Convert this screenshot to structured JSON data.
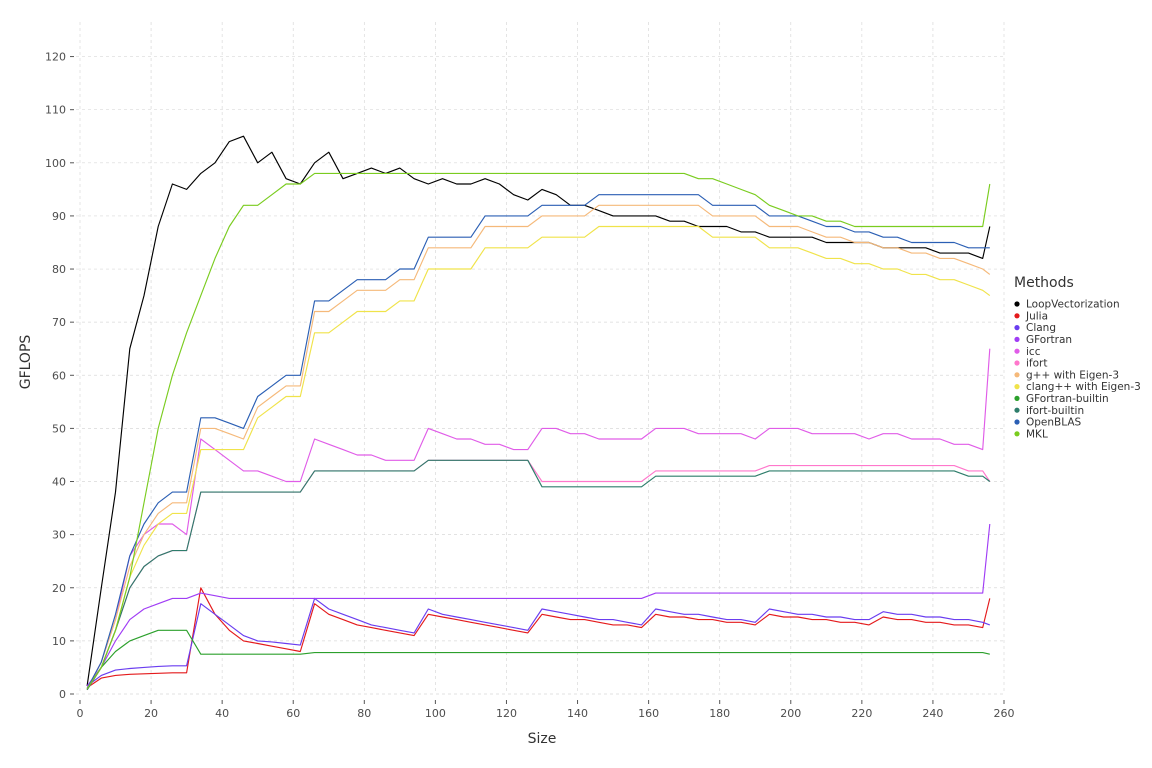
{
  "chart_data": {
    "type": "line",
    "title": "",
    "xlabel": "Size",
    "ylabel": "GFLOPS",
    "xlim": [
      0,
      260
    ],
    "ylim": [
      0,
      125
    ],
    "xticks": [
      0,
      20,
      40,
      60,
      80,
      100,
      120,
      140,
      160,
      180,
      200,
      220,
      240,
      260
    ],
    "yticks": [
      0,
      10,
      20,
      30,
      40,
      50,
      60,
      70,
      80,
      90,
      100,
      110,
      120
    ],
    "grid": true,
    "legend_title": "Methods",
    "legend_position": "right",
    "x": [
      2,
      6,
      10,
      14,
      18,
      22,
      26,
      30,
      34,
      38,
      42,
      46,
      50,
      54,
      58,
      62,
      66,
      70,
      74,
      78,
      82,
      86,
      90,
      94,
      98,
      102,
      106,
      110,
      114,
      118,
      122,
      126,
      130,
      134,
      138,
      142,
      146,
      150,
      154,
      158,
      162,
      166,
      170,
      174,
      178,
      182,
      186,
      190,
      194,
      198,
      202,
      206,
      210,
      214,
      218,
      222,
      226,
      230,
      234,
      238,
      242,
      246,
      250,
      254,
      256
    ],
    "series": [
      {
        "name": "LoopVectorization",
        "color": "#000000",
        "values": [
          1.5,
          20,
          38,
          65,
          75,
          88,
          96,
          95,
          98,
          100,
          104,
          105,
          100,
          102,
          97,
          96,
          100,
          102,
          97,
          98,
          99,
          98,
          99,
          97,
          96,
          97,
          96,
          96,
          97,
          96,
          94,
          93,
          95,
          94,
          92,
          92,
          91,
          90,
          90,
          90,
          90,
          89,
          89,
          88,
          88,
          88,
          87,
          87,
          86,
          86,
          86,
          86,
          85,
          85,
          85,
          85,
          84,
          84,
          84,
          84,
          83,
          83,
          83,
          82,
          88
        ]
      },
      {
        "name": "Julia",
        "color": "#e41a1c",
        "values": [
          1.2,
          3.0,
          3.5,
          3.7,
          3.8,
          3.9,
          4.0,
          4.0,
          20,
          15,
          12,
          10,
          9.5,
          9.0,
          8.5,
          8.0,
          17,
          15,
          14,
          13,
          12.5,
          12,
          11.5,
          11,
          15,
          14.5,
          14,
          13.5,
          13,
          12.5,
          12,
          11.5,
          15,
          14.5,
          14,
          14,
          13.5,
          13,
          13,
          12.5,
          15,
          14.5,
          14.5,
          14,
          14,
          13.5,
          13.5,
          13,
          15,
          14.5,
          14.5,
          14,
          14,
          13.5,
          13.5,
          13,
          14.5,
          14,
          14,
          13.5,
          13.5,
          13,
          13,
          12.5,
          18
        ]
      },
      {
        "name": "Clang",
        "color": "#6a3df0",
        "values": [
          1.5,
          3.5,
          4.5,
          4.8,
          5.0,
          5.2,
          5.3,
          5.3,
          17,
          15,
          13,
          11,
          10,
          9.8,
          9.5,
          9.2,
          18,
          16,
          15,
          14,
          13,
          12.5,
          12,
          11.5,
          16,
          15,
          14.5,
          14,
          13.5,
          13,
          12.5,
          12,
          16,
          15.5,
          15,
          14.5,
          14,
          14,
          13.5,
          13,
          16,
          15.5,
          15,
          15,
          14.5,
          14,
          14,
          13.5,
          16,
          15.5,
          15,
          15,
          14.5,
          14.5,
          14,
          14,
          15.5,
          15,
          15,
          14.5,
          14.5,
          14,
          14,
          13.5,
          13
        ]
      },
      {
        "name": "GFortran",
        "color": "#a03df5",
        "values": [
          1.5,
          5,
          10,
          14,
          16,
          17,
          18,
          18,
          19,
          18.5,
          18,
          18,
          18,
          18,
          18,
          18,
          18,
          18,
          18,
          18,
          18,
          18,
          18,
          18,
          18,
          18,
          18,
          18,
          18,
          18,
          18,
          18,
          18,
          18,
          18,
          18,
          18,
          18,
          18,
          18,
          19,
          19,
          19,
          19,
          19,
          19,
          19,
          19,
          19,
          19,
          19,
          19,
          19,
          19,
          19,
          19,
          19,
          19,
          19,
          19,
          19,
          19,
          19,
          19,
          32
        ]
      },
      {
        "name": "icc",
        "color": "#e05ce8",
        "values": [
          1.0,
          6,
          14,
          26,
          30,
          32,
          32,
          30,
          48,
          46,
          44,
          42,
          42,
          41,
          40,
          40,
          48,
          47,
          46,
          45,
          45,
          44,
          44,
          44,
          50,
          49,
          48,
          48,
          47,
          47,
          46,
          46,
          50,
          50,
          49,
          49,
          48,
          48,
          48,
          48,
          50,
          50,
          50,
          49,
          49,
          49,
          49,
          48,
          50,
          50,
          50,
          49,
          49,
          49,
          49,
          48,
          49,
          49,
          48,
          48,
          48,
          47,
          47,
          46,
          65
        ]
      },
      {
        "name": "ifort",
        "color": "#ff77cc",
        "values": [
          0.8,
          5,
          12,
          20,
          24,
          26,
          27,
          27,
          38,
          38,
          38,
          38,
          38,
          38,
          38,
          38,
          42,
          42,
          42,
          42,
          42,
          42,
          42,
          42,
          44,
          44,
          44,
          44,
          44,
          44,
          44,
          44,
          40,
          40,
          40,
          40,
          40,
          40,
          40,
          40,
          42,
          42,
          42,
          42,
          42,
          42,
          42,
          42,
          43,
          43,
          43,
          43,
          43,
          43,
          43,
          43,
          43,
          43,
          43,
          43,
          43,
          43,
          42,
          42,
          40
        ]
      },
      {
        "name": "g++ with Eigen-3",
        "color": "#f5b97a",
        "values": [
          0.8,
          6,
          14,
          24,
          30,
          34,
          36,
          36,
          50,
          50,
          49,
          48,
          54,
          56,
          58,
          58,
          72,
          72,
          74,
          76,
          76,
          76,
          78,
          78,
          84,
          84,
          84,
          84,
          88,
          88,
          88,
          88,
          90,
          90,
          90,
          90,
          92,
          92,
          92,
          92,
          92,
          92,
          92,
          92,
          90,
          90,
          90,
          90,
          88,
          88,
          88,
          87,
          86,
          86,
          85,
          85,
          84,
          84,
          83,
          83,
          82,
          82,
          81,
          80,
          79
        ]
      },
      {
        "name": "clang++ with Eigen-3",
        "color": "#f0e34a",
        "values": [
          0.8,
          5,
          12,
          22,
          28,
          32,
          34,
          34,
          46,
          46,
          46,
          46,
          52,
          54,
          56,
          56,
          68,
          68,
          70,
          72,
          72,
          72,
          74,
          74,
          80,
          80,
          80,
          80,
          84,
          84,
          84,
          84,
          86,
          86,
          86,
          86,
          88,
          88,
          88,
          88,
          88,
          88,
          88,
          88,
          86,
          86,
          86,
          86,
          84,
          84,
          84,
          83,
          82,
          82,
          81,
          81,
          80,
          80,
          79,
          79,
          78,
          78,
          77,
          76,
          75
        ]
      },
      {
        "name": "GFortran-builtin",
        "color": "#2ca02c",
        "values": [
          1.0,
          5,
          8,
          10,
          11,
          12,
          12,
          12,
          7.5,
          7.5,
          7.5,
          7.5,
          7.5,
          7.5,
          7.5,
          7.5,
          7.8,
          7.8,
          7.8,
          7.8,
          7.8,
          7.8,
          7.8,
          7.8,
          7.8,
          7.8,
          7.8,
          7.8,
          7.8,
          7.8,
          7.8,
          7.8,
          7.8,
          7.8,
          7.8,
          7.8,
          7.8,
          7.8,
          7.8,
          7.8,
          7.8,
          7.8,
          7.8,
          7.8,
          7.8,
          7.8,
          7.8,
          7.8,
          7.8,
          7.8,
          7.8,
          7.8,
          7.8,
          7.8,
          7.8,
          7.8,
          7.8,
          7.8,
          7.8,
          7.8,
          7.8,
          7.8,
          7.8,
          7.8,
          7.5
        ]
      },
      {
        "name": "ifort-builtin",
        "color": "#2e7d6b",
        "values": [
          0.8,
          5,
          12,
          20,
          24,
          26,
          27,
          27,
          38,
          38,
          38,
          38,
          38,
          38,
          38,
          38,
          42,
          42,
          42,
          42,
          42,
          42,
          42,
          42,
          44,
          44,
          44,
          44,
          44,
          44,
          44,
          44,
          39,
          39,
          39,
          39,
          39,
          39,
          39,
          39,
          41,
          41,
          41,
          41,
          41,
          41,
          41,
          41,
          42,
          42,
          42,
          42,
          42,
          42,
          42,
          42,
          42,
          42,
          42,
          42,
          42,
          42,
          41,
          41,
          40
        ]
      },
      {
        "name": "OpenBLAS",
        "color": "#2b5fb4",
        "values": [
          1.0,
          6,
          15,
          26,
          32,
          36,
          38,
          38,
          52,
          52,
          51,
          50,
          56,
          58,
          60,
          60,
          74,
          74,
          76,
          78,
          78,
          78,
          80,
          80,
          86,
          86,
          86,
          86,
          90,
          90,
          90,
          90,
          92,
          92,
          92,
          92,
          94,
          94,
          94,
          94,
          94,
          94,
          94,
          94,
          92,
          92,
          92,
          92,
          90,
          90,
          90,
          89,
          88,
          88,
          87,
          87,
          86,
          86,
          85,
          85,
          85,
          85,
          84,
          84,
          84
        ]
      },
      {
        "name": "MKL",
        "color": "#7acc1f",
        "values": [
          1.0,
          5,
          12,
          22,
          36,
          50,
          60,
          68,
          75,
          82,
          88,
          92,
          92,
          94,
          96,
          96,
          98,
          98,
          98,
          98,
          98,
          98,
          98,
          98,
          98,
          98,
          98,
          98,
          98,
          98,
          98,
          98,
          98,
          98,
          98,
          98,
          98,
          98,
          98,
          98,
          98,
          98,
          98,
          97,
          97,
          96,
          95,
          94,
          92,
          91,
          90,
          90,
          89,
          89,
          88,
          88,
          88,
          88,
          88,
          88,
          88,
          88,
          88,
          88,
          96
        ]
      }
    ]
  }
}
